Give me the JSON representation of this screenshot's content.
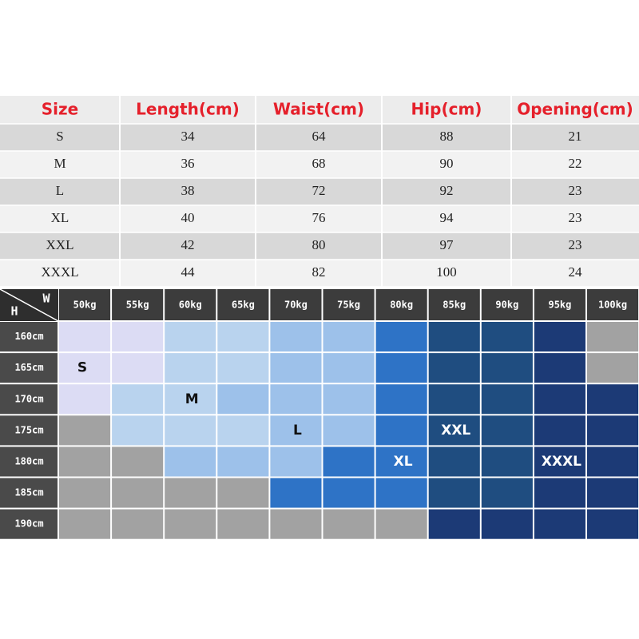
{
  "size_table": {
    "header": [
      "Size",
      "Length(cm)",
      "Waist(cm)",
      "Hip(cm)",
      "Opening(cm)"
    ],
    "rows": [
      [
        "S",
        "34",
        "64",
        "88",
        "21"
      ],
      [
        "M",
        "36",
        "68",
        "90",
        "22"
      ],
      [
        "L",
        "38",
        "72",
        "92",
        "23"
      ],
      [
        "XL",
        "40",
        "76",
        "94",
        "23"
      ],
      [
        "XXL",
        "42",
        "80",
        "97",
        "23"
      ],
      [
        "XXXL",
        "44",
        "82",
        "100",
        "24"
      ]
    ]
  },
  "fit_chart": {
    "corner": {
      "height": "H",
      "weight": "W"
    },
    "weights": [
      "50kg",
      "55kg",
      "60kg",
      "65kg",
      "70kg",
      "75kg",
      "80kg",
      "85kg",
      "90kg",
      "95kg",
      "100kg"
    ],
    "heights": [
      "160cm",
      "165cm",
      "170cm",
      "175cm",
      "180cm",
      "185cm",
      "190cm"
    ],
    "labels": [
      "S",
      "M",
      "L",
      "XL",
      "XXL",
      "XXXL"
    ]
  }
}
